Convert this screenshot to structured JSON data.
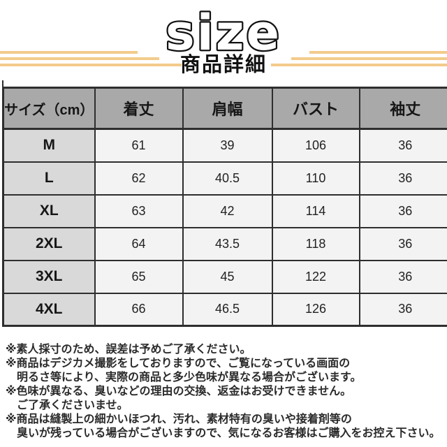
{
  "title": {
    "text": "size",
    "subtitle": "商品詳細"
  },
  "decor": {
    "stripe_color": "#F3CB8C"
  },
  "size_table": {
    "columns": [
      "サイズ（cm）",
      "着丈",
      "肩幅",
      "バスト",
      "袖丈"
    ],
    "rows": [
      {
        "size": "M",
        "values": [
          "61",
          "39",
          "106",
          "36"
        ]
      },
      {
        "size": "L",
        "values": [
          "62",
          "40.5",
          "110",
          "36"
        ]
      },
      {
        "size": "XL",
        "values": [
          "63",
          "42",
          "114",
          "36"
        ]
      },
      {
        "size": "2XL",
        "values": [
          "64",
          "43.5",
          "118",
          "36"
        ]
      },
      {
        "size": "3XL",
        "values": [
          "65",
          "45",
          "122",
          "36"
        ]
      },
      {
        "size": "4XL",
        "values": [
          "66",
          "46.5",
          "126",
          "36"
        ]
      }
    ],
    "colors": {
      "header_bg": "#A9A9A9",
      "label_bg": "#D9D9D9",
      "cell_bg": "#F3F3F3",
      "border": "#2E2E2E"
    }
  },
  "notes": [
    {
      "text": "※素人採寸のため、誤差は予めご了承ください。",
      "indent": false
    },
    {
      "text": "※商品はデジカメ撮影をしておりますので、ご覧になっている画面の",
      "indent": false
    },
    {
      "text": "明るさ等により、実際の商品と多少色味が異なる場合がございます。",
      "indent": true
    },
    {
      "text": "※色味が異なる、臭いなどの理由の交換、返金はお受けできません。",
      "indent": false
    },
    {
      "text": "ご了承くださいませ。",
      "indent": true
    },
    {
      "text": "※商品は縫製上の細かいほつれ、汚れ、素材特有の臭いや接着剤等の",
      "indent": false
    },
    {
      "text": "臭いが残っている場合がございますので、気になるお客様はご購入をお控え下さい。",
      "indent": true
    }
  ],
  "chart_data": {
    "type": "table",
    "title": "size",
    "subtitle": "商品詳細",
    "columns": [
      "サイズ（cm）",
      "着丈",
      "肩幅",
      "バスト",
      "袖丈"
    ],
    "rows": [
      [
        "M",
        61,
        39,
        106,
        36
      ],
      [
        "L",
        62,
        40.5,
        110,
        36
      ],
      [
        "XL",
        63,
        42,
        114,
        36
      ],
      [
        "2XL",
        64,
        43.5,
        118,
        36
      ],
      [
        "3XL",
        65,
        45,
        122,
        36
      ],
      [
        "4XL",
        66,
        46.5,
        126,
        36
      ]
    ]
  }
}
